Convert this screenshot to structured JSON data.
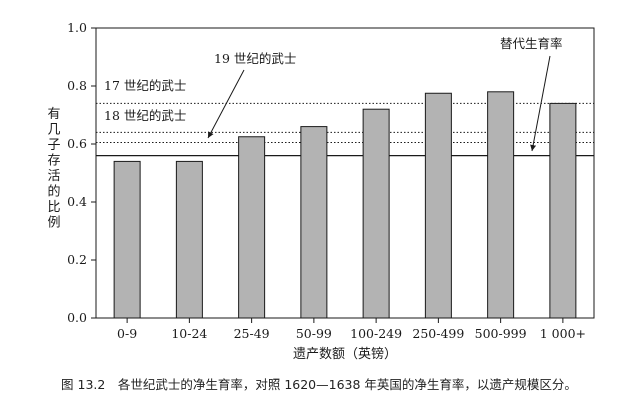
{
  "chart_data": {
    "type": "bar",
    "categories": [
      "0-9",
      "10-24",
      "25-49",
      "50-99",
      "100-249",
      "250-499",
      "500-999",
      "1 000+"
    ],
    "values": [
      0.54,
      0.54,
      0.625,
      0.66,
      0.72,
      0.775,
      0.78,
      0.74
    ],
    "xlabel": "遗产数额（英镑）",
    "ylabel": "有几子存活的比例",
    "ylim": [
      0.0,
      1.0
    ],
    "yticks": [
      "0.0",
      "0.2",
      "0.4",
      "0.6",
      "0.8",
      "1.0"
    ],
    "grid": false,
    "bar_color": "#b3b3b3",
    "reference_lines": [
      {
        "label": "17 世纪的武士",
        "value": 0.74,
        "style": "dotted"
      },
      {
        "label": "18 世纪的武士",
        "value": 0.64,
        "style": "dotted"
      },
      {
        "label": "19 世纪的武士",
        "value": 0.605,
        "style": "dotted"
      },
      {
        "label": "替代生育率",
        "value": 0.56,
        "style": "solid"
      }
    ]
  },
  "caption": "图 13.2　各世纪武士的净生育率，对照 1620—1638 年英国的净生育率，以遗产规模区分。"
}
